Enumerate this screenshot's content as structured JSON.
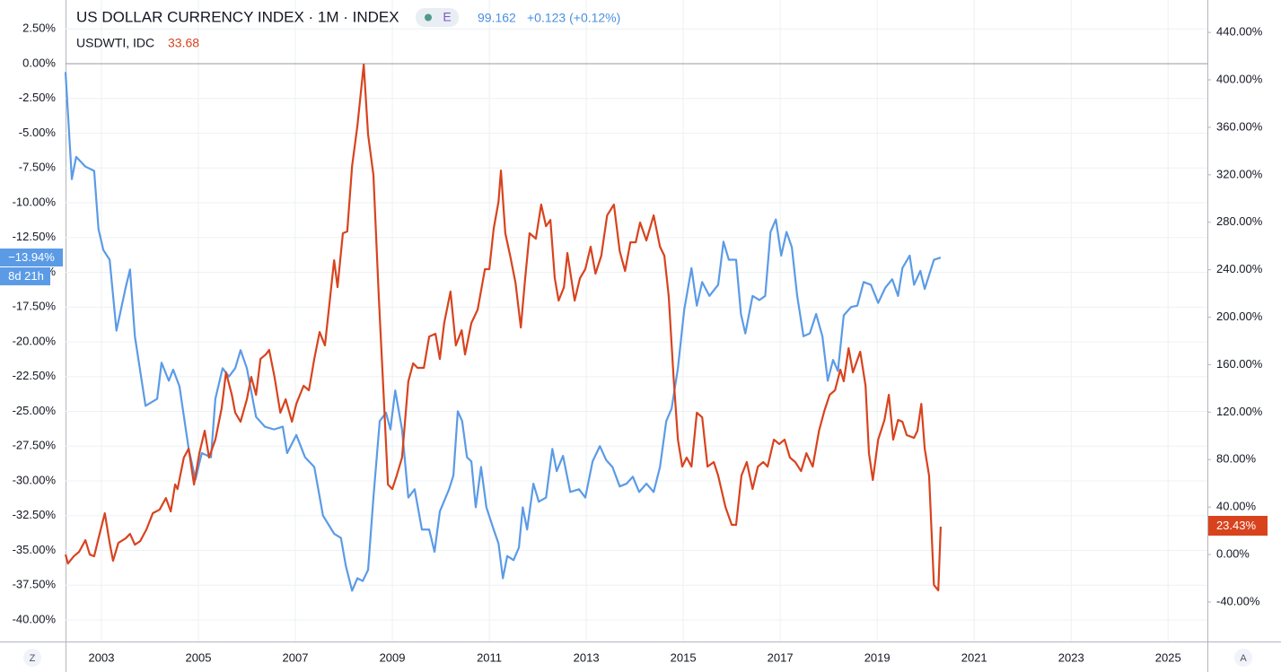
{
  "chart_data": {
    "type": "line",
    "series": [
      {
        "name": "US DOLLAR CURRENCY INDEX · 1M · INDEX",
        "color": "#5b9be6",
        "axis": "y",
        "flag": "E",
        "quote": "99.162",
        "change": "+0.123 (+0.12%)",
        "x": [
          2002.26,
          2002.39,
          2002.48,
          2002.67,
          2002.85,
          2002.94,
          2003.04,
          2003.17,
          2003.31,
          2003.5,
          2003.59,
          2003.69,
          2003.91,
          2004.15,
          2004.24,
          2004.39,
          2004.48,
          2004.61,
          2004.8,
          2004.94,
          2005.07,
          2005.26,
          2005.35,
          2005.5,
          2005.63,
          2005.76,
          2005.87,
          2006.0,
          2006.19,
          2006.37,
          2006.56,
          2006.74,
          2006.83,
          2007.02,
          2007.2,
          2007.39,
          2007.57,
          2007.8,
          2007.94,
          2008.04,
          2008.17,
          2008.28,
          2008.39,
          2008.5,
          2008.61,
          2008.74,
          2008.87,
          2008.96,
          2009.06,
          2009.2,
          2009.33,
          2009.46,
          2009.61,
          2009.76,
          2009.87,
          2009.98,
          2010.17,
          2010.26,
          2010.35,
          2010.44,
          2010.54,
          2010.63,
          2010.72,
          2010.83,
          2010.94,
          2011.09,
          2011.19,
          2011.28,
          2011.37,
          2011.5,
          2011.61,
          2011.69,
          2011.78,
          2011.91,
          2012.02,
          2012.17,
          2012.3,
          2012.39,
          2012.52,
          2012.67,
          2012.85,
          2012.98,
          2013.13,
          2013.28,
          2013.41,
          2013.54,
          2013.69,
          2013.83,
          2013.96,
          2014.09,
          2014.24,
          2014.39,
          2014.52,
          2014.65,
          2014.76,
          2014.89,
          2015.02,
          2015.17,
          2015.28,
          2015.39,
          2015.54,
          2015.72,
          2015.83,
          2015.94,
          2016.09,
          2016.19,
          2016.28,
          2016.43,
          2016.57,
          2016.69,
          2016.8,
          2016.91,
          2017.02,
          2017.13,
          2017.24,
          2017.35,
          2017.48,
          2017.61,
          2017.74,
          2017.87,
          2017.98,
          2018.09,
          2018.19,
          2018.31,
          2018.46,
          2018.59,
          2018.72,
          2018.87,
          2019.02,
          2019.17,
          2019.31,
          2019.43,
          2019.52,
          2019.67,
          2019.76,
          2019.89,
          2019.98,
          2020.17,
          2020.31
        ],
        "values": [
          -0.6,
          -8.3,
          -6.7,
          -7.4,
          -7.7,
          -11.9,
          -13.4,
          -14.1,
          -19.2,
          -16.1,
          -14.8,
          -19.6,
          -24.6,
          -24.1,
          -21.5,
          -22.8,
          -22,
          -23.2,
          -27.7,
          -29.9,
          -28,
          -28.3,
          -24.1,
          -21.9,
          -22.5,
          -21.9,
          -20.6,
          -21.9,
          -25.4,
          -26.1,
          -26.3,
          -26.1,
          -28,
          -26.7,
          -28.3,
          -29,
          -32.5,
          -33.8,
          -34.1,
          -36.1,
          -37.9,
          -37,
          -37.2,
          -36.4,
          -31.2,
          -25.7,
          -25.1,
          -26.3,
          -23.5,
          -26.3,
          -31.2,
          -30.6,
          -33.5,
          -33.5,
          -35.1,
          -32.2,
          -30.6,
          -29.6,
          -25,
          -25.7,
          -28.3,
          -28.6,
          -31.9,
          -29,
          -31.9,
          -33.5,
          -34.5,
          -37,
          -35.4,
          -35.7,
          -34.8,
          -31.9,
          -33.5,
          -30.2,
          -31.5,
          -31.2,
          -27.7,
          -29.3,
          -28.2,
          -30.8,
          -30.6,
          -31.2,
          -28.6,
          -27.5,
          -28.5,
          -29,
          -30.4,
          -30.2,
          -29.7,
          -30.8,
          -30.2,
          -30.8,
          -29,
          -25.7,
          -24.8,
          -21.9,
          -17.7,
          -14.7,
          -17.4,
          -15.7,
          -16.7,
          -15.9,
          -12.8,
          -14.1,
          -14.1,
          -18,
          -19.4,
          -16.7,
          -17,
          -16.7,
          -12.1,
          -11.2,
          -13.8,
          -12.1,
          -13.2,
          -16.7,
          -19.6,
          -19.4,
          -18,
          -19.6,
          -22.8,
          -21.3,
          -22.1,
          -18.1,
          -17.5,
          -17.4,
          -15.7,
          -15.9,
          -17.2,
          -16.1,
          -15.5,
          -16.7,
          -14.7,
          -13.8,
          -15.9,
          -14.9,
          -16.2,
          -14.1,
          -13.94
        ]
      },
      {
        "name": "USDWTI, IDC",
        "color": "#d8431e",
        "axis": "y2",
        "quote": "33.68",
        "x": [
          2002.26,
          2002.31,
          2002.43,
          2002.54,
          2002.67,
          2002.76,
          2002.85,
          2002.94,
          2003.07,
          2003.17,
          2003.24,
          2003.35,
          2003.5,
          2003.59,
          2003.69,
          2003.8,
          2003.93,
          2004.06,
          2004.2,
          2004.33,
          2004.43,
          2004.52,
          2004.57,
          2004.7,
          2004.8,
          2004.91,
          2005.02,
          2005.13,
          2005.22,
          2005.35,
          2005.48,
          2005.57,
          2005.69,
          2005.76,
          2005.87,
          2006.0,
          2006.09,
          2006.19,
          2006.28,
          2006.39,
          2006.46,
          2006.57,
          2006.69,
          2006.8,
          2006.93,
          2007.02,
          2007.17,
          2007.28,
          2007.39,
          2007.5,
          2007.61,
          2007.72,
          2007.8,
          2007.87,
          2007.98,
          2008.07,
          2008.17,
          2008.28,
          2008.41,
          2008.5,
          2008.61,
          2008.72,
          2008.83,
          2008.91,
          2009.0,
          2009.09,
          2009.2,
          2009.33,
          2009.43,
          2009.52,
          2009.65,
          2009.76,
          2009.89,
          2009.98,
          2010.07,
          2010.2,
          2010.31,
          2010.43,
          2010.5,
          2010.63,
          2010.76,
          2010.91,
          2011.0,
          2011.09,
          2011.19,
          2011.24,
          2011.33,
          2011.43,
          2011.54,
          2011.65,
          2011.74,
          2011.83,
          2011.96,
          2012.07,
          2012.17,
          2012.26,
          2012.35,
          2012.43,
          2012.54,
          2012.61,
          2012.76,
          2012.87,
          2012.98,
          2013.09,
          2013.19,
          2013.31,
          2013.43,
          2013.57,
          2013.69,
          2013.8,
          2013.91,
          2014.02,
          2014.11,
          2014.24,
          2014.39,
          2014.52,
          2014.61,
          2014.7,
          2014.8,
          2014.89,
          2014.98,
          2015.07,
          2015.17,
          2015.28,
          2015.39,
          2015.5,
          2015.63,
          2015.72,
          2015.87,
          2016.0,
          2016.09,
          2016.2,
          2016.31,
          2016.43,
          2016.54,
          2016.65,
          2016.74,
          2016.87,
          2016.98,
          2017.09,
          2017.2,
          2017.31,
          2017.43,
          2017.54,
          2017.67,
          2017.8,
          2017.91,
          2018.02,
          2018.13,
          2018.24,
          2018.31,
          2018.41,
          2018.5,
          2018.65,
          2018.76,
          2018.83,
          2018.91,
          2019.02,
          2019.15,
          2019.24,
          2019.33,
          2019.43,
          2019.52,
          2019.61,
          2019.76,
          2019.83,
          2019.91,
          2019.98,
          2020.07,
          2020.17,
          2020.26,
          2020.31
        ],
        "values": [
          0,
          -7.6,
          -1.5,
          2.3,
          12.1,
          0,
          -1.5,
          13.6,
          34.8,
          9.8,
          -5.3,
          9.8,
          13.6,
          17.4,
          8.3,
          11.3,
          21.2,
          34.8,
          37.8,
          47.6,
          36.3,
          59,
          55.2,
          81.7,
          89.2,
          59,
          85.4,
          104.3,
          81.7,
          96.8,
          123.3,
          153.5,
          134.6,
          119.5,
          111.9,
          130.8,
          149.7,
          134.6,
          164.8,
          168.6,
          172.4,
          149.7,
          119.5,
          130.8,
          111.9,
          127,
          142.2,
          138.4,
          164.8,
          187.5,
          176.2,
          217.8,
          248,
          225.3,
          270.7,
          272.2,
          327.4,
          361.4,
          412.9,
          353.9,
          319.8,
          217.8,
          127,
          59,
          55.2,
          66.5,
          81.7,
          145.9,
          161.1,
          157.3,
          157.3,
          183.7,
          186,
          164.8,
          195.1,
          221.6,
          176.2,
          189,
          168.6,
          195.1,
          206.4,
          240.5,
          240.5,
          274.5,
          297.2,
          323.6,
          270.7,
          251.8,
          229.1,
          191.3,
          232.9,
          270.7,
          266.2,
          294.9,
          276.7,
          281.9,
          232.9,
          214,
          225.3,
          254.1,
          214,
          232.9,
          240.5,
          259.4,
          236.7,
          251.8,
          285.8,
          294.9,
          255.6,
          238.9,
          263.1,
          263.1,
          279.8,
          264.7,
          285.8,
          259.4,
          251.8,
          217.8,
          149.7,
          96.8,
          74.1,
          81.7,
          74.1,
          119.5,
          115.7,
          74.1,
          77.9,
          66.5,
          40.1,
          25,
          25,
          66.5,
          77.9,
          55.2,
          74.1,
          77.9,
          74.1,
          96.8,
          93.1,
          96.8,
          81.7,
          77.9,
          70.3,
          85.4,
          74.1,
          104.3,
          121,
          134.6,
          138.4,
          155.8,
          146,
          173.9,
          153.5,
          170.9,
          142.2,
          85.4,
          62.8,
          96.8,
          113.4,
          134.6,
          96.8,
          113.4,
          111.9,
          100.6,
          98.3,
          104.3,
          127,
          89.2,
          66.5,
          -25.7,
          -30.2,
          23.43
        ]
      }
    ],
    "xlim": [
      2002.26,
      2025.81
    ],
    "xticks": [
      2003,
      2005,
      2007,
      2009,
      2011,
      2013,
      2015,
      2017,
      2019,
      2021,
      2023,
      2025
    ],
    "ylim": [
      -41.55,
      4.58
    ],
    "yticks": [
      {
        "value": 2.5,
        "label": "2.50%"
      },
      {
        "value": 0,
        "label": "0.00%"
      },
      {
        "value": -2.5,
        "label": "-2.50%"
      },
      {
        "value": -5,
        "label": "-5.00%"
      },
      {
        "value": -7.5,
        "label": "-7.50%"
      },
      {
        "value": -10,
        "label": "-10.00%"
      },
      {
        "value": -12.5,
        "label": "-12.50%"
      },
      {
        "value": -15,
        "label": "-15.00%"
      },
      {
        "value": -17.5,
        "label": "-17.50%"
      },
      {
        "value": -20,
        "label": "-20.00%"
      },
      {
        "value": -22.5,
        "label": "-22.50%"
      },
      {
        "value": -25,
        "label": "-25.00%"
      },
      {
        "value": -27.5,
        "label": "-27.50%"
      },
      {
        "value": -30,
        "label": "-30.00%"
      },
      {
        "value": -32.5,
        "label": "-32.50%"
      },
      {
        "value": -35,
        "label": "-35.00%"
      },
      {
        "value": -37.5,
        "label": "-37.50%"
      },
      {
        "value": -40,
        "label": "-40.00%"
      }
    ],
    "y2lim": [
      -73.3,
      467.3
    ],
    "y2ticks": [
      {
        "value": 440,
        "label": "440.00%"
      },
      {
        "value": 400,
        "label": "400.00%"
      },
      {
        "value": 360,
        "label": "360.00%"
      },
      {
        "value": 320,
        "label": "320.00%"
      },
      {
        "value": 280,
        "label": "280.00%"
      },
      {
        "value": 240,
        "label": "240.00%"
      },
      {
        "value": 200,
        "label": "200.00%"
      },
      {
        "value": 160,
        "label": "160.00%"
      },
      {
        "value": 120,
        "label": "120.00%"
      },
      {
        "value": 80,
        "label": "80.00%"
      },
      {
        "value": 40,
        "label": "40.00%"
      },
      {
        "value": 0,
        "label": "0.00%"
      },
      {
        "value": -40,
        "label": "-40.00%"
      }
    ],
    "grid": true,
    "last_value_labels": {
      "y": "−13.94%",
      "countdown": "8d 21h",
      "y2": "23.43%"
    }
  },
  "controls": [
    "Z",
    "A"
  ]
}
